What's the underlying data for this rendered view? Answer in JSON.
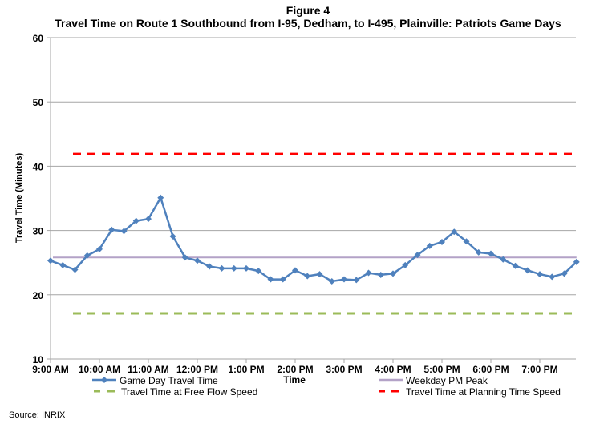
{
  "figure_label": "Figure 4",
  "title": "Travel Time on Route 1 Southbound from I-95, Dedham, to I-495, Plainville: Patriots Game Days",
  "source": "Source: INRIX",
  "chart_data": {
    "type": "line",
    "title": "Travel Time on Route 1 Southbound from I-95, Dedham, to I-495, Plainville: Patriots Game Days",
    "xlabel": "Time",
    "ylabel": "Travel Time (Minutes)",
    "ylim": [
      10,
      60
    ],
    "yticks": [
      10,
      20,
      30,
      40,
      50,
      60
    ],
    "xtick_labels": [
      "9:00 AM",
      "10:00 AM",
      "11:00 AM",
      "12:00 PM",
      "1:00 PM",
      "2:00 PM",
      "3:00 PM",
      "4:00 PM",
      "5:00 PM",
      "6:00 PM",
      "7:00 PM"
    ],
    "x_interval_minutes": 15,
    "grid": "horizontal",
    "legend_position": "bottom",
    "series": [
      {
        "name": "Game Day Travel Time",
        "color": "#4F81BD",
        "style": "solid-with-diamond-markers",
        "values": [
          25.3,
          24.6,
          23.9,
          26.1,
          27.1,
          30.1,
          29.9,
          31.5,
          31.8,
          35.1,
          29.1,
          25.8,
          25.3,
          24.4,
          24.1,
          24.1,
          24.1,
          23.7,
          22.4,
          22.4,
          23.8,
          22.9,
          23.2,
          22.1,
          22.4,
          22.3,
          23.4,
          23.1,
          23.3,
          24.6,
          26.2,
          27.6,
          28.2,
          29.8,
          28.3,
          26.6,
          26.4,
          25.5,
          24.5,
          23.8,
          23.2,
          22.8,
          23.3,
          25.1
        ]
      },
      {
        "name": "Weekday PM Peak",
        "color": "#B3A2C7",
        "style": "solid",
        "values": [
          25.8
        ]
      },
      {
        "name": "Travel Time at Free Flow Speed",
        "color": "#9BBB59",
        "style": "dashed",
        "values": [
          17.1
        ]
      },
      {
        "name": "Travel Time at Planning Time Speed",
        "color": "#FF0000",
        "style": "dashed",
        "values": [
          41.9
        ]
      }
    ]
  },
  "legend": {
    "game_day": "Game Day Travel Time",
    "weekday_peak": "Weekday PM Peak",
    "free_flow": "Travel Time at Free Flow Speed",
    "planning": "Travel Time at Planning Time Speed"
  }
}
